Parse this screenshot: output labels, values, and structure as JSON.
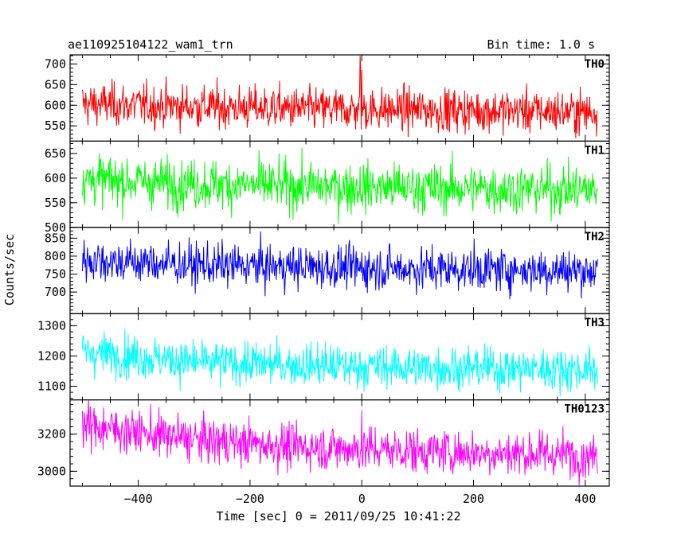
{
  "chart_data": {
    "type": "line",
    "title": "ae110925104122_wam1_trn",
    "bin_time_label": "Bin time: 1.0 s",
    "xlabel": "Time [sec] 0 = 2011/09/25 10:41:22",
    "ylabel": "Counts/sec",
    "xlim": [
      -522,
      443
    ],
    "x_ticks": [
      -400,
      -200,
      0,
      200,
      400
    ],
    "x_tick_labels": [
      "−400",
      "−200",
      "0",
      "200",
      "400"
    ],
    "x_range": [
      -500,
      422
    ],
    "grid": false,
    "panels": [
      {
        "name": "TH0",
        "color": "#ff0000",
        "ylim": [
          513,
          722
        ],
        "y_ticks": [
          550,
          600,
          650,
          700
        ],
        "trend": [
          [
            -500,
            603
          ],
          [
            -300,
            597
          ],
          [
            -100,
            591
          ],
          [
            100,
            589
          ],
          [
            300,
            586
          ],
          [
            422,
            583
          ]
        ],
        "noise_sd": 26,
        "spikes": [
          [
            -3,
            720
          ],
          [
            -2,
            690
          ],
          [
            0,
            685
          ]
        ]
      },
      {
        "name": "TH1",
        "color": "#00ff00",
        "ylim": [
          500,
          675
        ],
        "y_ticks": [
          500,
          550,
          600,
          650
        ],
        "trend": [
          [
            -500,
            598
          ],
          [
            -300,
            588
          ],
          [
            -100,
            583
          ],
          [
            100,
            580
          ],
          [
            300,
            578
          ],
          [
            422,
            576
          ]
        ],
        "noise_sd": 25,
        "spikes": []
      },
      {
        "name": "TH2",
        "color": "#0000ff",
        "ylim": [
          640,
          880
        ],
        "y_ticks": [
          700,
          750,
          800,
          850
        ],
        "trend": [
          [
            -500,
            790
          ],
          [
            -300,
            775
          ],
          [
            -100,
            770
          ],
          [
            100,
            765
          ],
          [
            300,
            762
          ],
          [
            422,
            760
          ]
        ],
        "noise_sd": 30,
        "spikes": []
      },
      {
        "name": "TH3",
        "color": "#00ffff",
        "ylim": [
          1055,
          1340
        ],
        "y_ticks": [
          1100,
          1200,
          1300
        ],
        "trend": [
          [
            -500,
            1215
          ],
          [
            -300,
            1180
          ],
          [
            -100,
            1170
          ],
          [
            100,
            1162
          ],
          [
            300,
            1158
          ],
          [
            422,
            1155
          ]
        ],
        "noise_sd": 35,
        "spikes": []
      },
      {
        "name": "TH0123",
        "color": "#ff00ff",
        "ylim": [
          2920,
          3385
        ],
        "y_ticks": [
          3000,
          3200
        ],
        "trend": [
          [
            -500,
            3250
          ],
          [
            -300,
            3170
          ],
          [
            -100,
            3130
          ],
          [
            100,
            3110
          ],
          [
            300,
            3095
          ],
          [
            422,
            3085
          ]
        ],
        "noise_sd": 60,
        "spikes": [
          [
            0,
            3330
          ]
        ]
      }
    ]
  }
}
